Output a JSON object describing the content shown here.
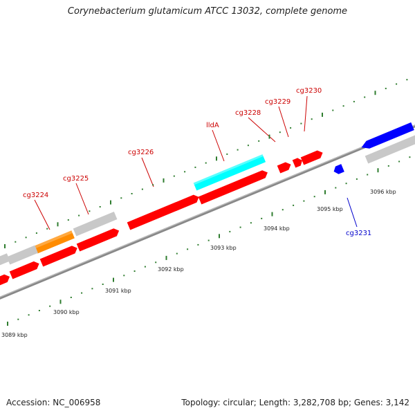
{
  "title": "Corynebacterium glutamicum ATCC 13032, complete genome",
  "footer": {
    "accession": "Accession: NC_006958",
    "topology": "Topology: circular; Length: 3,282,708 bp; Genes: 3,142"
  },
  "colors": {
    "forward": "#ff0000",
    "reverse": "#0000ff",
    "grey": "#c8c8c8",
    "orange": "#ff8c00",
    "cyan": "#00ffff",
    "tick": "#2f7d2f",
    "label_forward": "#cc0000",
    "label_reverse": "#0000cc"
  },
  "kbp_labels": [
    "3089 kbp",
    "3090 kbp",
    "3091 kbp",
    "3092 kbp",
    "3093 kbp",
    "3094 kbp",
    "3095 kbp",
    "3096 kbp"
  ],
  "gene_labels": [
    {
      "name": "cg3224",
      "strand": "forward"
    },
    {
      "name": "cg3225",
      "strand": "forward"
    },
    {
      "name": "cg3226",
      "strand": "forward"
    },
    {
      "name": "lldA",
      "strand": "forward"
    },
    {
      "name": "cg3228",
      "strand": "forward"
    },
    {
      "name": "cg3229",
      "strand": "forward"
    },
    {
      "name": "cg3230",
      "strand": "forward"
    },
    {
      "name": "cg3231",
      "strand": "reverse"
    }
  ]
}
